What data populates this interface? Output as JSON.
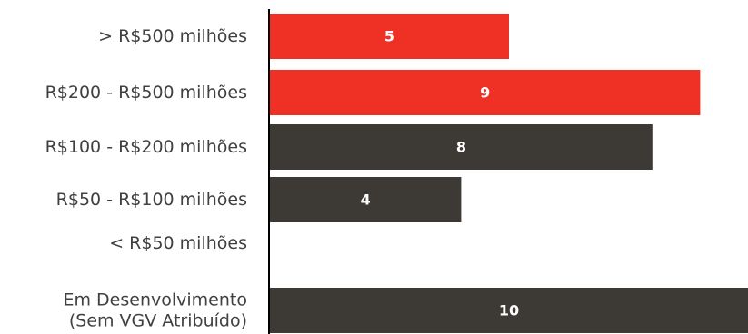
{
  "chart_data": {
    "type": "bar",
    "orientation": "horizontal",
    "categories": [
      [
        "> R$500 milhões"
      ],
      [
        "R$200 - R$500 milhões"
      ],
      [
        "R$100 - R$200 milhões"
      ],
      [
        "R$50 - R$100 milhões"
      ],
      [
        "< R$50 milhões"
      ],
      [
        "Em Desenvolvimento",
        "(Sem VGV Atribuído)"
      ]
    ],
    "values": [
      5,
      9,
      8,
      4,
      null,
      10
    ],
    "data_labels": [
      "5",
      "9",
      "8",
      "4",
      "",
      "10"
    ],
    "bar_colors": [
      "#EE3124",
      "#EE3124",
      "#3D3935",
      "#3D3935",
      "#3D3935",
      "#3D3935"
    ],
    "xlim": [
      0,
      10
    ],
    "grid": false,
    "legend": "none"
  }
}
